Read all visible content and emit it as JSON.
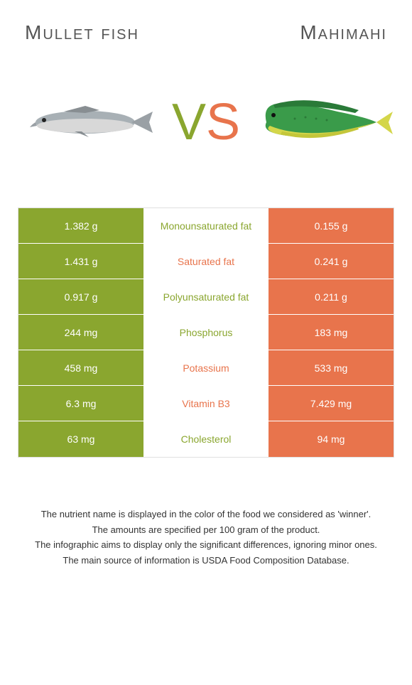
{
  "header": {
    "left_title": "Mullet fish",
    "right_title": "Mahimahi",
    "vs_v": "V",
    "vs_s": "S"
  },
  "colors": {
    "left_bg": "#8aa62f",
    "right_bg": "#e8744c",
    "mullet_body": "#a8b0b5",
    "mullet_belly": "#e0e0e0",
    "mahi_body": "#3a9b4a",
    "mahi_belly": "#d4d64a",
    "mahi_fin": "#2a7a38"
  },
  "table": {
    "rows": [
      {
        "left": "1.382 g",
        "label": "Monounsaturated fat",
        "right": "0.155 g",
        "winner": "left"
      },
      {
        "left": "1.431 g",
        "label": "Saturated fat",
        "right": "0.241 g",
        "winner": "right"
      },
      {
        "left": "0.917 g",
        "label": "Polyunsaturated fat",
        "right": "0.211 g",
        "winner": "left"
      },
      {
        "left": "244 mg",
        "label": "Phosphorus",
        "right": "183 mg",
        "winner": "left"
      },
      {
        "left": "458 mg",
        "label": "Potassium",
        "right": "533 mg",
        "winner": "right"
      },
      {
        "left": "6.3 mg",
        "label": "Vitamin B3",
        "right": "7.429 mg",
        "winner": "right"
      },
      {
        "left": "63 mg",
        "label": "Cholesterol",
        "right": "94 mg",
        "winner": "left"
      }
    ]
  },
  "footer": {
    "line1": "The nutrient name is displayed in the color of the food we considered as 'winner'.",
    "line2": "The amounts are specified per 100 gram of the product.",
    "line3": "The infographic aims to display only the significant differences, ignoring minor ones.",
    "line4": "The main source of information is USDA Food Composition Database."
  }
}
